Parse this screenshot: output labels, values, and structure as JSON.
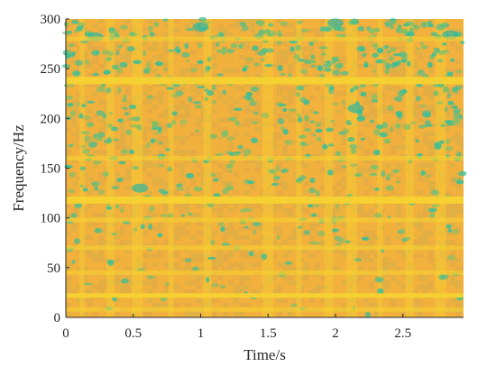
{
  "chart_data": {
    "type": "heatmap",
    "title": "",
    "xlabel": "Time/s",
    "ylabel": "Frequency/Hz",
    "xlim": [
      0,
      2.95
    ],
    "ylim": [
      0,
      300
    ],
    "xticks": [
      0,
      0.5,
      1,
      1.5,
      2,
      2.5
    ],
    "xtick_labels": [
      "0",
      "0.5",
      "1",
      "1.5",
      "2",
      "2.5"
    ],
    "yticks": [
      0,
      50,
      100,
      150,
      200,
      250,
      300
    ],
    "ytick_labels": [
      "0",
      "50",
      "100",
      "150",
      "200",
      "250",
      "300"
    ],
    "colormap": "parula",
    "colors": {
      "low": "#3cbf96",
      "mid": "#e9b43a",
      "high": "#f7d230",
      "background": "#f2b03c"
    },
    "bright_bands_hz": [
      8,
      22,
      45,
      70,
      98,
      118,
      160,
      238,
      280
    ],
    "bright_columns_s": [
      0.12,
      0.33,
      0.53,
      0.78,
      1.05,
      1.5,
      1.73,
      1.95,
      2.12,
      2.33,
      2.55,
      2.78
    ]
  }
}
